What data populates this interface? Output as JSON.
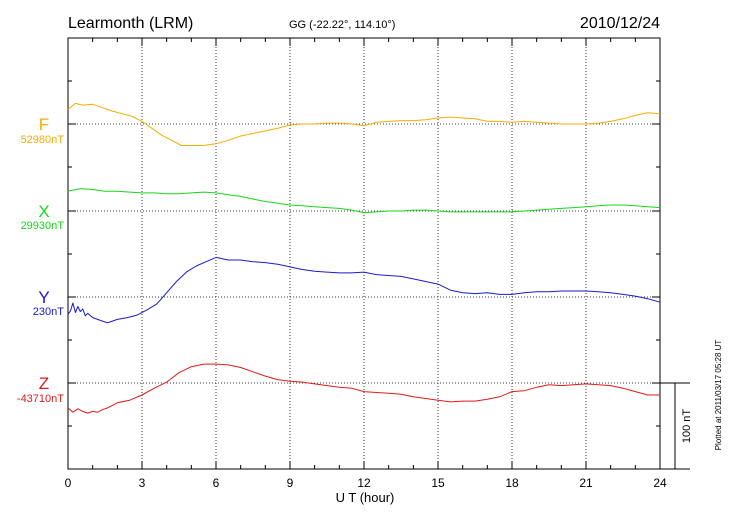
{
  "header": {
    "station": "Learmonth (LRM)",
    "coords": "GG (-22.22°, 114.10°)",
    "date": "2010/12/24"
  },
  "footer": {
    "plotted": "Plotted at 2011/03/17 05:28 UT",
    "scale_label": "100 nT"
  },
  "chart_data": {
    "type": "line",
    "xlabel": "U T (hour)",
    "xlim": [
      0,
      24
    ],
    "xticks": [
      "0",
      "3",
      "6",
      "9",
      "12",
      "15",
      "18",
      "21",
      "24"
    ],
    "grid": true,
    "scale_bar_nT": 100,
    "series": [
      {
        "name": "F",
        "baseline": "52980nT",
        "color": "#f5ad00",
        "x": [
          0,
          0.3,
          0.6,
          1.0,
          1.4,
          1.8,
          2.2,
          2.6,
          3.0,
          3.4,
          3.8,
          4.2,
          4.6,
          5.0,
          5.5,
          6.0,
          6.5,
          7.0,
          7.5,
          8.0,
          8.5,
          9.0,
          9.5,
          10.0,
          10.5,
          11.0,
          11.5,
          12.0,
          12.5,
          13.0,
          13.5,
          14.0,
          14.5,
          15.0,
          15.5,
          16.0,
          16.5,
          17.0,
          17.5,
          18.0,
          18.5,
          19.0,
          19.5,
          20.0,
          20.5,
          21.0,
          21.5,
          22.0,
          22.5,
          23.0,
          23.5,
          24.0
        ],
        "y": [
          52997,
          53004,
          53002,
          53003,
          52999,
          52995,
          52992,
          52989,
          52983,
          52975,
          52967,
          52961,
          52955,
          52955,
          52955,
          52957,
          52961,
          52966,
          52969,
          52972,
          52975,
          52979,
          52980,
          52980,
          52981,
          52981,
          52980,
          52978,
          52982,
          52983,
          52984,
          52984,
          52985,
          52987,
          52988,
          52987,
          52986,
          52983,
          52983,
          52982,
          52983,
          52982,
          52981,
          52980,
          52980,
          52980,
          52981,
          52983,
          52986,
          52990,
          52993,
          52992
        ]
      },
      {
        "name": "X",
        "baseline": "29930nT",
        "color": "#1ad61a",
        "x": [
          0,
          0.5,
          1.0,
          1.5,
          2.0,
          2.5,
          3.0,
          3.5,
          4.0,
          4.5,
          5.0,
          5.5,
          6.0,
          6.5,
          7.0,
          7.5,
          8.0,
          8.5,
          9.0,
          9.5,
          10.0,
          10.5,
          11.0,
          11.5,
          12.0,
          12.5,
          13.0,
          13.5,
          14.0,
          14.5,
          15.0,
          15.5,
          16.0,
          16.5,
          17.0,
          17.5,
          18.0,
          18.5,
          19.0,
          19.5,
          20.0,
          20.5,
          21.0,
          21.5,
          22.0,
          22.5,
          23.0,
          23.5,
          24.0
        ],
        "y": [
          29953,
          29956,
          29955,
          29953,
          29953,
          29952,
          29951,
          29951,
          29950,
          29950,
          29951,
          29952,
          29951,
          29949,
          29947,
          29944,
          29941,
          29939,
          29937,
          29936,
          29935,
          29934,
          29933,
          29931,
          29928,
          29929,
          29930,
          29930,
          29931,
          29931,
          29930,
          29929,
          29929,
          29929,
          29929,
          29929,
          29929,
          29930,
          29931,
          29932,
          29933,
          29934,
          29935,
          29936,
          29937,
          29937,
          29936,
          29935,
          29934
        ]
      },
      {
        "name": "Y",
        "baseline": "230nT",
        "color": "#1a1acc",
        "x": [
          0,
          0.1,
          0.2,
          0.3,
          0.4,
          0.5,
          0.6,
          0.7,
          0.8,
          1.0,
          1.2,
          1.4,
          1.6,
          1.8,
          2.0,
          2.4,
          2.8,
          3.2,
          3.6,
          4.0,
          4.4,
          4.8,
          5.2,
          5.6,
          6.0,
          6.5,
          7.0,
          7.5,
          8.0,
          8.5,
          9.0,
          9.5,
          10.0,
          10.5,
          11.0,
          11.5,
          12.0,
          12.5,
          13.0,
          13.5,
          14.0,
          14.5,
          15.0,
          15.5,
          16.0,
          16.5,
          17.0,
          17.5,
          18.0,
          18.5,
          19.0,
          19.5,
          20.0,
          20.5,
          21.0,
          21.5,
          22.0,
          22.5,
          23.0,
          23.5,
          24.0
        ],
        "y": [
          210,
          214,
          223,
          212,
          219,
          213,
          216,
          208,
          211,
          206,
          204,
          202,
          200,
          202,
          204,
          206,
          209,
          215,
          222,
          235,
          248,
          259,
          266,
          271,
          276,
          273,
          273,
          271,
          270,
          268,
          265,
          262,
          260,
          259,
          258,
          258,
          259,
          256,
          255,
          254,
          251,
          248,
          245,
          238,
          235,
          234,
          235,
          233,
          233,
          235,
          236,
          236,
          237,
          237,
          237,
          236,
          235,
          233,
          231,
          228,
          224
        ]
      },
      {
        "name": "Z",
        "baseline": "-43710nT",
        "color": "#e01a1a",
        "x": [
          0,
          0.2,
          0.4,
          0.6,
          0.8,
          1.0,
          1.2,
          1.4,
          1.6,
          1.8,
          2.0,
          2.5,
          3.0,
          3.5,
          4.0,
          4.5,
          5.0,
          5.5,
          6.0,
          6.5,
          7.0,
          7.5,
          8.0,
          8.5,
          9.0,
          9.5,
          10.0,
          10.5,
          11.0,
          11.5,
          12.0,
          12.5,
          13.0,
          13.5,
          14.0,
          14.5,
          15.0,
          15.5,
          16.0,
          16.5,
          17.0,
          17.5,
          18.0,
          18.5,
          19.0,
          19.5,
          20.0,
          20.5,
          21.0,
          21.5,
          22.0,
          22.5,
          23.0,
          23.5,
          24.0
        ],
        "y": [
          -43739,
          -43744,
          -43740,
          -43743,
          -43745,
          -43743,
          -43744,
          -43741,
          -43739,
          -43736,
          -43733,
          -43730,
          -43724,
          -43716,
          -43709,
          -43698,
          -43691,
          -43688,
          -43688,
          -43689,
          -43692,
          -43697,
          -43702,
          -43706,
          -43708,
          -43709,
          -43711,
          -43713,
          -43715,
          -43716,
          -43720,
          -43721,
          -43722,
          -43723,
          -43726,
          -43728,
          -43730,
          -43732,
          -43731,
          -43731,
          -43729,
          -43726,
          -43720,
          -43719,
          -43715,
          -43712,
          -43713,
          -43712,
          -43711,
          -43712,
          -43713,
          -43716,
          -43720,
          -43724,
          -43724
        ]
      }
    ]
  }
}
